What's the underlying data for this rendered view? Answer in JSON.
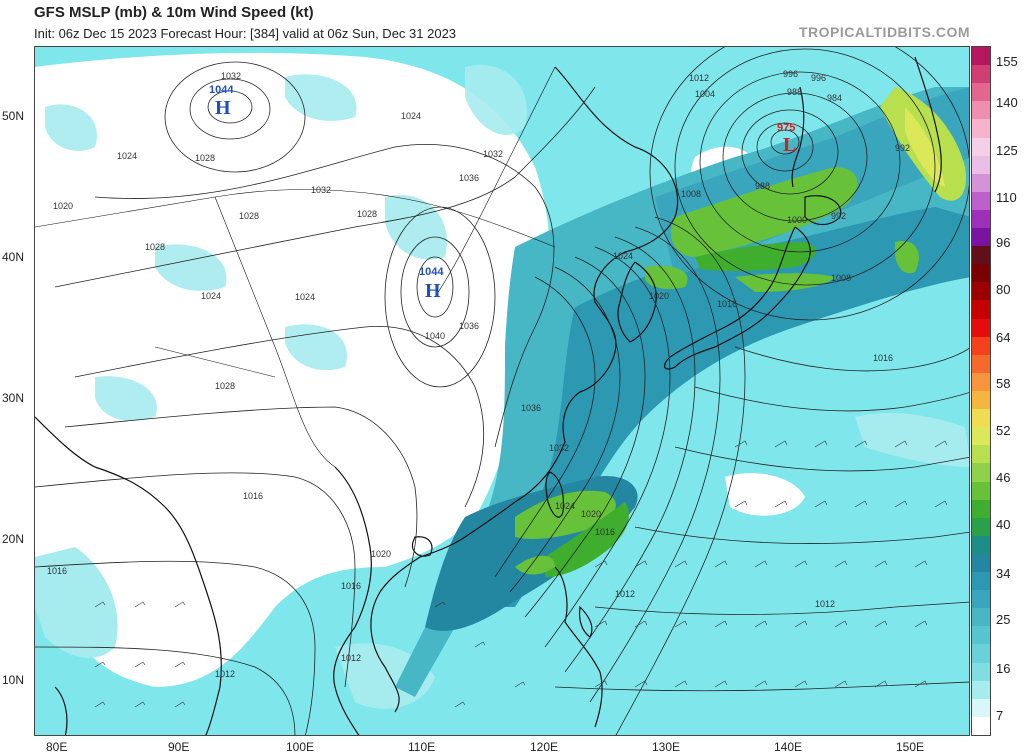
{
  "header": {
    "title": "GFS MSLP (mb) & 10m Wind Speed (kt)",
    "subtitle": "Init: 06z Dec 15 2023   Forecast Hour: [384]   valid at 06z Sun, Dec 31 2023",
    "brand": "TROPICALTIDBITS.COM"
  },
  "axes": {
    "lat_labels": [
      "50N",
      "40N",
      "30N",
      "20N",
      "10N"
    ],
    "lon_labels": [
      "80E",
      "90E",
      "100E",
      "110E",
      "120E",
      "130E",
      "140E",
      "150E"
    ]
  },
  "pressure_centers": [
    {
      "type": "H",
      "value": "1044",
      "location": "Mongolia"
    },
    {
      "type": "H",
      "value": "1044",
      "location": "North China"
    },
    {
      "type": "L",
      "value": "975",
      "location": "Sea of Okhotsk"
    }
  ],
  "isobar_labels": [
    "1032",
    "1024",
    "1028",
    "1020",
    "1024",
    "1028",
    "1032",
    "1028",
    "1024",
    "1036",
    "1032",
    "1028",
    "1040",
    "1036",
    "1036",
    "1032",
    "1024",
    "1020",
    "1016",
    "1012",
    "1008",
    "1004",
    "1000",
    "996",
    "992",
    "988",
    "984",
    "1016",
    "1016",
    "1012",
    "1012",
    "1020",
    "1024",
    "1016",
    "1012",
    "1008",
    "996",
    "992",
    "988",
    "1016",
    "1012",
    "1020",
    "1016",
    "1024",
    "1028"
  ],
  "colorbar": {
    "labels": [
      "155",
      "140",
      "125",
      "110",
      "96",
      "80",
      "64",
      "58",
      "52",
      "46",
      "40",
      "34",
      "25",
      "16",
      "7"
    ],
    "colors": [
      "#b5175e",
      "#cf3f74",
      "#e2668f",
      "#ee8fb0",
      "#f5b4cc",
      "#f3d0e6",
      "#e9bfe6",
      "#d692d9",
      "#bd60cc",
      "#9e2fb8",
      "#7a12a2",
      "#620f1a",
      "#7a0000",
      "#9b0000",
      "#c40000",
      "#e40d0d",
      "#f3411b",
      "#f5692c",
      "#f8943c",
      "#f4b63f",
      "#f0dc52",
      "#dbe85a",
      "#b7df4e",
      "#8fd24a",
      "#67c23a",
      "#3fae2e",
      "#2aa148",
      "#1d8e86",
      "#2487a2",
      "#2d98b2",
      "#3aa6bd",
      "#47b7c6",
      "#57c5cf",
      "#6bd1d8",
      "#80dde2",
      "#a6ebee",
      "#d9f7f8",
      "#ffffff"
    ]
  }
}
